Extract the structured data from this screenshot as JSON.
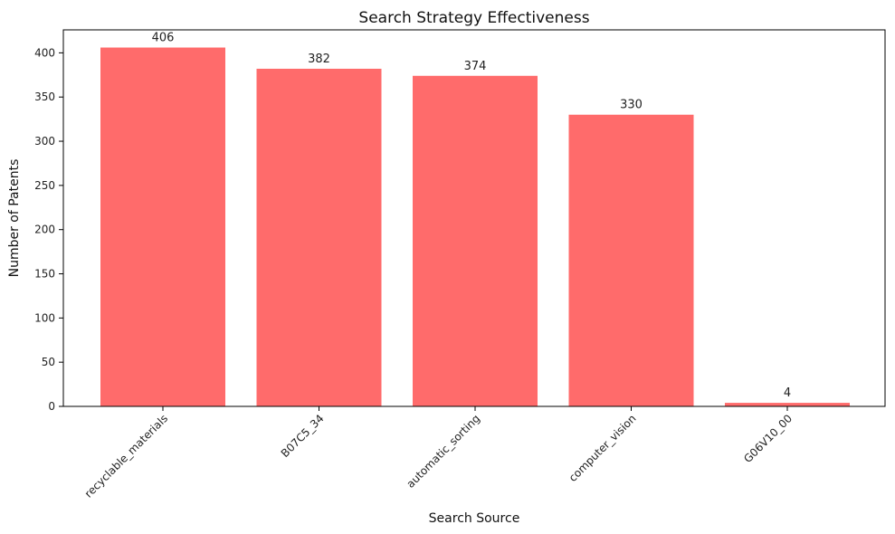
{
  "chart_data": {
    "type": "bar",
    "title": "Search Strategy Effectiveness",
    "xlabel": "Search Source",
    "ylabel": "Number of Patents",
    "categories": [
      "recyclable_materials",
      "B07C5_34",
      "automatic_sorting",
      "computer_vision",
      "G06V10_00"
    ],
    "values": [
      406,
      382,
      374,
      330,
      4
    ],
    "data_labels": [
      "406",
      "382",
      "374",
      "330",
      "4"
    ],
    "y_ticks": [
      0,
      50,
      100,
      150,
      200,
      250,
      300,
      350,
      400
    ],
    "ylim": [
      0,
      426
    ],
    "grid": false,
    "bar_color": "#ff6b6b"
  }
}
